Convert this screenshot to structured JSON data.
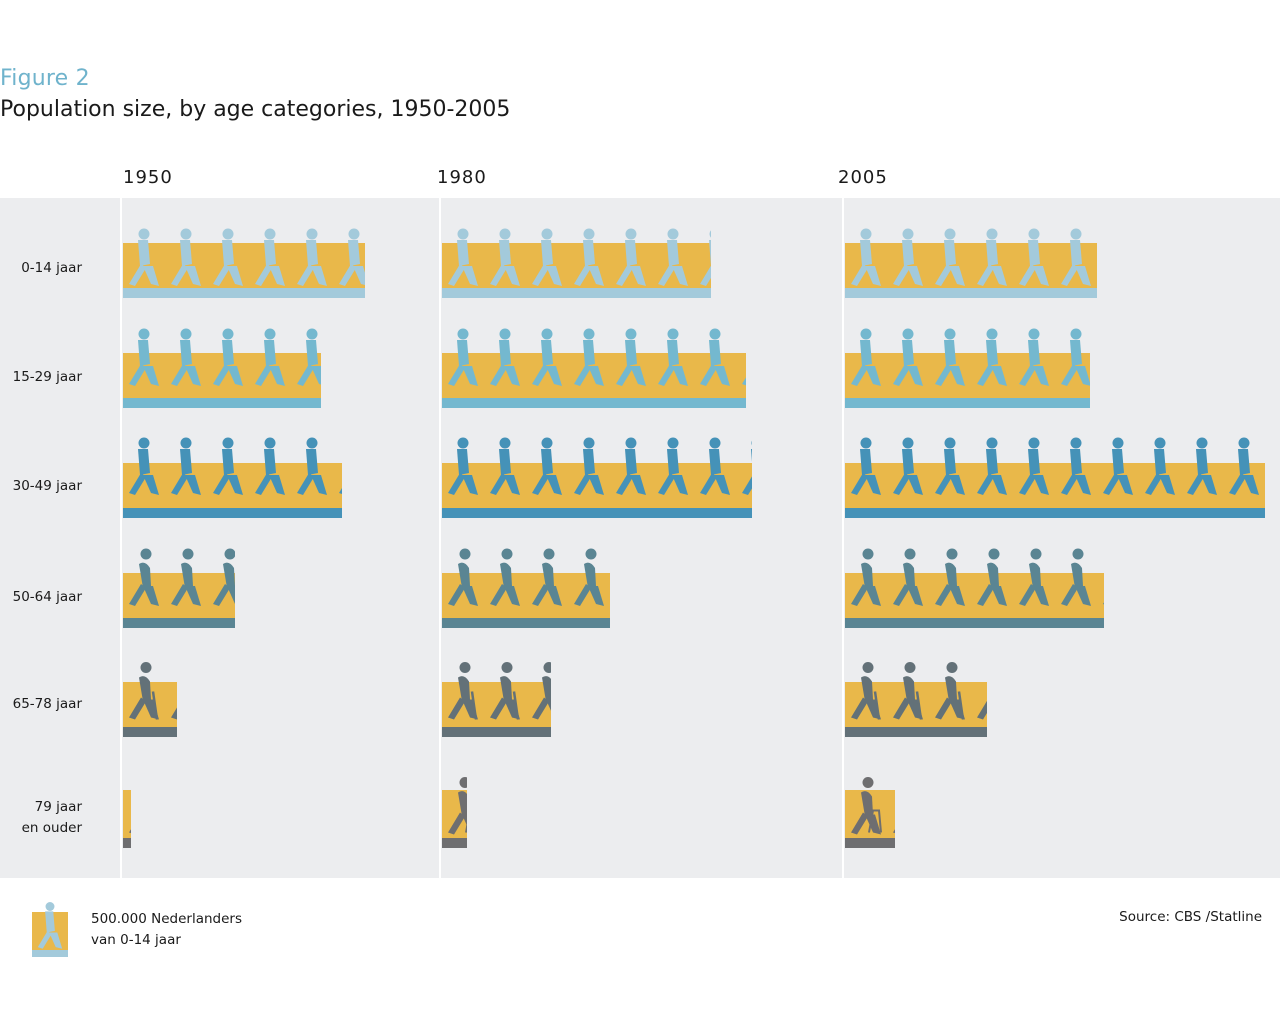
{
  "header": {
    "figure_label": "Figure 2",
    "title": "Population size, by age categories, 1950-2005"
  },
  "years": [
    "1950",
    "1980",
    "2005"
  ],
  "categories": [
    {
      "label": "0-14 jaar",
      "color": "#a3cadb",
      "icon": "child-walking-icon"
    },
    {
      "label": "15-29 jaar",
      "color": "#74b8cf",
      "icon": "young-adult-walking-icon"
    },
    {
      "label": "30-49 jaar",
      "color": "#4592b8",
      "icon": "adult-walking-icon"
    },
    {
      "label": "50-64 jaar",
      "color": "#5a8593",
      "icon": "middle-aged-walking-icon"
    },
    {
      "label": "65-78 jaar",
      "color": "#637178",
      "icon": "elderly-cane-icon"
    },
    {
      "label": "79 jaar\nen ouder",
      "color": "#6e6e70",
      "icon": "elderly-walker-icon"
    }
  ],
  "colors": {
    "bar_fill": "#e9b84a",
    "plot_background": "#ecedef",
    "figure_label": "#6fb3cc"
  },
  "legend": {
    "icon": "child-walking-icon",
    "line1": "500.000 Nederlanders",
    "line2": "van 0-14 jaar"
  },
  "source": "Source: CBS /Statline",
  "chart_data": {
    "type": "bar",
    "orientation": "horizontal",
    "style": "pictogram",
    "title": "Population size, by age categories, 1950-2005",
    "subtitle": "Figure 2",
    "unit": "persons",
    "icon_unit_value": 500000,
    "categories": [
      "0-14 jaar",
      "15-29 jaar",
      "30-49 jaar",
      "50-64 jaar",
      "65-78 jaar",
      "79 jaar en ouder"
    ],
    "series": [
      {
        "name": "1950",
        "values": [
          2880000,
          2360000,
          2610000,
          1330000,
          640000,
          100000
        ]
      },
      {
        "name": "1980",
        "values": [
          3200000,
          3620000,
          3690000,
          2000000,
          1300000,
          300000
        ]
      },
      {
        "name": "2005",
        "values": [
          3000000,
          2920000,
          5000000,
          3080000,
          1690000,
          600000
        ]
      }
    ],
    "xlabel": "",
    "ylabel": "",
    "legend": "1 icon = 500.000 Nederlanders van 0-14 jaar",
    "grid": false,
    "source": "CBS /Statline"
  }
}
